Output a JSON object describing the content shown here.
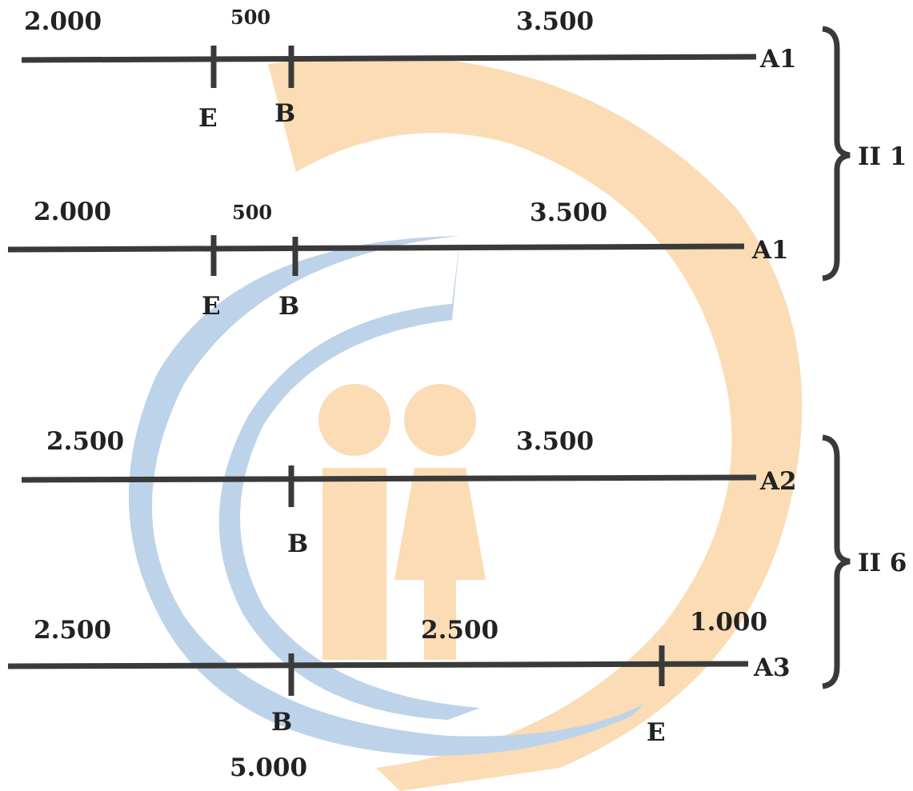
{
  "watermark": {
    "icon": "two-people-logo-icon",
    "colors": {
      "orange": "#fbdcb4",
      "blue": "#bdd3ea"
    }
  },
  "colors": {
    "line": "#3a3a3a",
    "text": "#222222"
  },
  "lines": [
    {
      "end_label": "A1",
      "segments": [
        "2.000",
        "500",
        "3.500"
      ],
      "points": [
        "E",
        "B"
      ]
    },
    {
      "end_label": "A1",
      "segments": [
        "2.000",
        "500",
        "3.500"
      ],
      "points": [
        "E",
        "B"
      ]
    },
    {
      "end_label": "A2",
      "segments": [
        "2.500",
        "3.500"
      ],
      "points": [
        "B"
      ]
    },
    {
      "end_label": "A3",
      "segments": [
        "2.500",
        "2.500",
        "1.000"
      ],
      "points": [
        "B",
        "E"
      ],
      "total": "5.000"
    }
  ],
  "groups": [
    {
      "label": "II 1"
    },
    {
      "label": "II 6"
    }
  ]
}
